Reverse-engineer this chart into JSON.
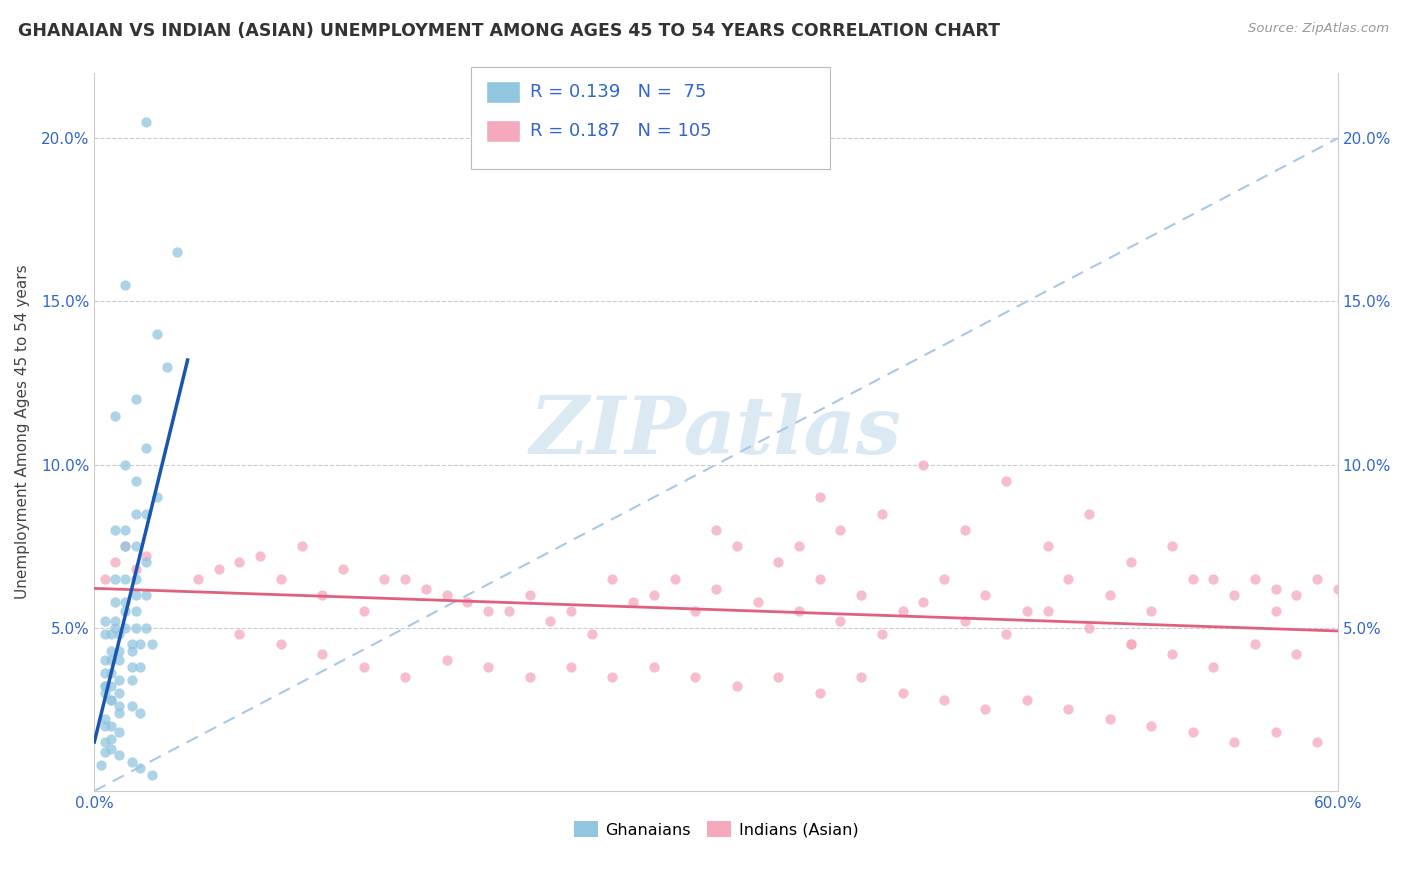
{
  "title": "GHANAIAN VS INDIAN (ASIAN) UNEMPLOYMENT AMONG AGES 45 TO 54 YEARS CORRELATION CHART",
  "source": "Source: ZipAtlas.com",
  "ylabel": "Unemployment Among Ages 45 to 54 years",
  "xlim": [
    0.0,
    0.6
  ],
  "ylim": [
    0.0,
    0.22
  ],
  "x_ticks": [
    0.0,
    0.1,
    0.2,
    0.3,
    0.4,
    0.5,
    0.6
  ],
  "x_tick_labels_show": [
    "0.0%",
    "",
    "",
    "",
    "",
    "",
    "60.0%"
  ],
  "y_ticks": [
    0.0,
    0.05,
    0.1,
    0.15,
    0.2
  ],
  "y_tick_labels": [
    "",
    "5.0%",
    "10.0%",
    "15.0%",
    "20.0%"
  ],
  "right_y_tick_labels": [
    "",
    "5.0%",
    "10.0%",
    "15.0%",
    "20.0%"
  ],
  "ghana_color": "#92c5de",
  "india_color": "#f4a9bc",
  "ghana_line_color": "#1a56b0",
  "india_line_color": "#e0607e",
  "dashed_line_color": "#a8c8e8",
  "ghana_R": 0.139,
  "ghana_N": 75,
  "india_R": 0.187,
  "india_N": 105,
  "legend_color": "#3366cc",
  "watermark_color": "#cde0ef",
  "ghana_scatter_x": [
    0.025,
    0.04,
    0.015,
    0.03,
    0.035,
    0.02,
    0.01,
    0.025,
    0.015,
    0.02,
    0.03,
    0.025,
    0.02,
    0.015,
    0.01,
    0.02,
    0.015,
    0.025,
    0.02,
    0.01,
    0.015,
    0.02,
    0.025,
    0.015,
    0.01,
    0.02,
    0.015,
    0.01,
    0.005,
    0.025,
    0.02,
    0.015,
    0.01,
    0.005,
    0.008,
    0.012,
    0.018,
    0.022,
    0.028,
    0.008,
    0.012,
    0.018,
    0.005,
    0.008,
    0.012,
    0.018,
    0.022,
    0.005,
    0.008,
    0.012,
    0.018,
    0.005,
    0.008,
    0.012,
    0.005,
    0.008,
    0.012,
    0.018,
    0.022,
    0.005,
    0.008,
    0.012,
    0.005,
    0.008,
    0.012,
    0.018,
    0.022,
    0.028,
    0.005,
    0.008,
    0.012,
    0.005,
    0.008,
    0.005,
    0.003
  ],
  "ghana_scatter_y": [
    0.205,
    0.165,
    0.155,
    0.14,
    0.13,
    0.12,
    0.115,
    0.105,
    0.1,
    0.095,
    0.09,
    0.085,
    0.085,
    0.08,
    0.08,
    0.075,
    0.075,
    0.07,
    0.065,
    0.065,
    0.065,
    0.06,
    0.06,
    0.058,
    0.058,
    0.055,
    0.055,
    0.052,
    0.052,
    0.05,
    0.05,
    0.05,
    0.05,
    0.048,
    0.048,
    0.048,
    0.045,
    0.045,
    0.045,
    0.043,
    0.043,
    0.043,
    0.04,
    0.04,
    0.04,
    0.038,
    0.038,
    0.036,
    0.036,
    0.034,
    0.034,
    0.032,
    0.032,
    0.03,
    0.03,
    0.028,
    0.026,
    0.026,
    0.024,
    0.022,
    0.02,
    0.018,
    0.015,
    0.013,
    0.011,
    0.009,
    0.007,
    0.005,
    0.032,
    0.028,
    0.024,
    0.02,
    0.016,
    0.012,
    0.008
  ],
  "india_scatter_x": [
    0.005,
    0.01,
    0.015,
    0.02,
    0.025,
    0.05,
    0.07,
    0.09,
    0.11,
    0.13,
    0.15,
    0.17,
    0.19,
    0.21,
    0.23,
    0.25,
    0.27,
    0.29,
    0.31,
    0.33,
    0.35,
    0.37,
    0.39,
    0.41,
    0.43,
    0.45,
    0.47,
    0.49,
    0.51,
    0.53,
    0.55,
    0.57,
    0.59,
    0.06,
    0.08,
    0.1,
    0.12,
    0.14,
    0.16,
    0.18,
    0.2,
    0.22,
    0.24,
    0.26,
    0.28,
    0.3,
    0.32,
    0.34,
    0.36,
    0.38,
    0.4,
    0.42,
    0.44,
    0.46,
    0.48,
    0.5,
    0.52,
    0.54,
    0.56,
    0.58,
    0.07,
    0.09,
    0.11,
    0.13,
    0.15,
    0.17,
    0.19,
    0.21,
    0.23,
    0.25,
    0.27,
    0.29,
    0.31,
    0.33,
    0.35,
    0.37,
    0.39,
    0.41,
    0.43,
    0.45,
    0.47,
    0.49,
    0.51,
    0.53,
    0.55,
    0.57,
    0.59,
    0.4,
    0.44,
    0.48,
    0.52,
    0.56,
    0.6,
    0.35,
    0.38,
    0.42,
    0.46,
    0.5,
    0.54,
    0.58,
    0.3,
    0.34,
    0.36,
    0.5,
    0.57
  ],
  "india_scatter_y": [
    0.065,
    0.07,
    0.075,
    0.068,
    0.072,
    0.065,
    0.07,
    0.065,
    0.06,
    0.055,
    0.065,
    0.06,
    0.055,
    0.06,
    0.055,
    0.065,
    0.06,
    0.055,
    0.075,
    0.07,
    0.065,
    0.06,
    0.055,
    0.065,
    0.06,
    0.055,
    0.065,
    0.06,
    0.055,
    0.065,
    0.06,
    0.055,
    0.065,
    0.068,
    0.072,
    0.075,
    0.068,
    0.065,
    0.062,
    0.058,
    0.055,
    0.052,
    0.048,
    0.058,
    0.065,
    0.062,
    0.058,
    0.055,
    0.052,
    0.048,
    0.058,
    0.052,
    0.048,
    0.055,
    0.05,
    0.045,
    0.042,
    0.038,
    0.045,
    0.042,
    0.048,
    0.045,
    0.042,
    0.038,
    0.035,
    0.04,
    0.038,
    0.035,
    0.038,
    0.035,
    0.038,
    0.035,
    0.032,
    0.035,
    0.03,
    0.035,
    0.03,
    0.028,
    0.025,
    0.028,
    0.025,
    0.022,
    0.02,
    0.018,
    0.015,
    0.018,
    0.015,
    0.1,
    0.095,
    0.085,
    0.075,
    0.065,
    0.062,
    0.09,
    0.085,
    0.08,
    0.075,
    0.07,
    0.065,
    0.06,
    0.08,
    0.075,
    0.08,
    0.045,
    0.062
  ]
}
